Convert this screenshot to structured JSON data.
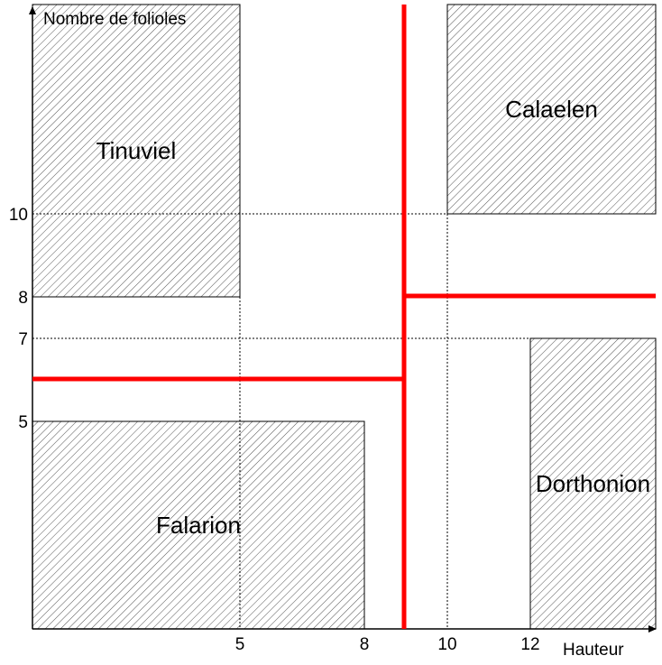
{
  "axes": {
    "y_title": "Nombre de folioles",
    "x_title": "Hauteur",
    "x_ticks": [
      {
        "value": 5,
        "label": "5"
      },
      {
        "value": 8,
        "label": "8"
      },
      {
        "value": 10,
        "label": "10"
      },
      {
        "value": 12,
        "label": "12"
      }
    ],
    "y_ticks": [
      {
        "value": 10,
        "label": "10"
      },
      {
        "value": 8,
        "label": "8"
      },
      {
        "value": 7,
        "label": "7"
      },
      {
        "value": 5,
        "label": "5"
      }
    ]
  },
  "zones": [
    {
      "name": "Tinuviel",
      "x_from": 0,
      "x_to": 5,
      "y_from": 8,
      "y_to": 15
    },
    {
      "name": "Calaelen",
      "x_from": 10,
      "x_to": 15,
      "y_from": 10,
      "y_to": 15
    },
    {
      "name": "Falarion",
      "x_from": 0,
      "x_to": 8,
      "y_from": 0,
      "y_to": 5
    },
    {
      "name": "Dorthonion",
      "x_from": 12,
      "x_to": 15,
      "y_from": 0,
      "y_to": 7
    }
  ],
  "splits": {
    "x_split": 9,
    "y_split_left": 6,
    "y_split_right": 8,
    "color": "#ff0000"
  },
  "colors": {
    "hatch": "#555555",
    "axis": "#000000"
  }
}
